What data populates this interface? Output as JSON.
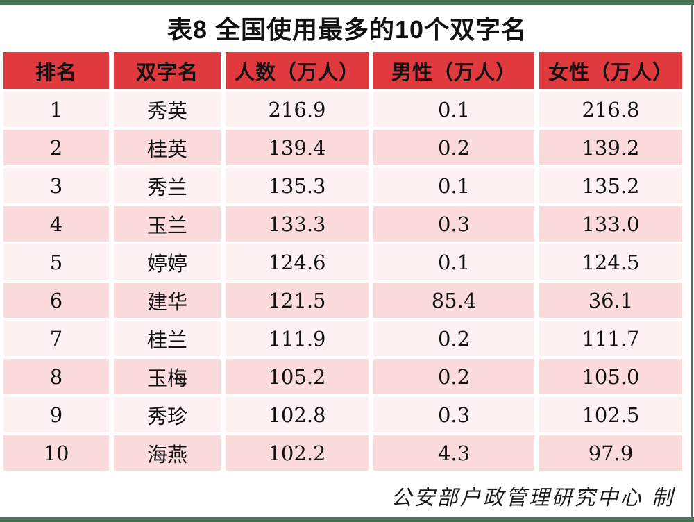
{
  "title": "表8  全国使用最多的10个双字名",
  "footer_note": "公安部户政管理研究中心 制",
  "colors": {
    "header_bg": "#E03A3E",
    "row_light_bg": "#FDF1F1",
    "row_dark_bg": "#FBDBDC",
    "frame_green": "#4A7355",
    "text": "#111111"
  },
  "table": {
    "headers": [
      "排名",
      "双字名",
      "人数（万人）",
      "男性（万人）",
      "女性（万人）"
    ],
    "rows": [
      {
        "rank": "1",
        "name": "秀英",
        "total": "216.9",
        "male": "0.1",
        "female": "216.8"
      },
      {
        "rank": "2",
        "name": "桂英",
        "total": "139.4",
        "male": "0.2",
        "female": "139.2"
      },
      {
        "rank": "3",
        "name": "秀兰",
        "total": "135.3",
        "male": "0.1",
        "female": "135.2"
      },
      {
        "rank": "4",
        "name": "玉兰",
        "total": "133.3",
        "male": "0.3",
        "female": "133.0"
      },
      {
        "rank": "5",
        "name": "婷婷",
        "total": "124.6",
        "male": "0.1",
        "female": "124.5"
      },
      {
        "rank": "6",
        "name": "建华",
        "total": "121.5",
        "male": "85.4",
        "female": "36.1"
      },
      {
        "rank": "7",
        "name": "桂兰",
        "total": "111.9",
        "male": "0.2",
        "female": "111.7"
      },
      {
        "rank": "8",
        "name": "玉梅",
        "total": "105.2",
        "male": "0.2",
        "female": "105.0"
      },
      {
        "rank": "9",
        "name": "秀珍",
        "total": "102.8",
        "male": "0.3",
        "female": "102.5"
      },
      {
        "rank": "10",
        "name": "海燕",
        "total": "102.2",
        "male": "4.3",
        "female": "97.9"
      }
    ]
  },
  "chart_data": {
    "type": "table",
    "title": "表8 全国使用最多的10个双字名",
    "columns": [
      "排名",
      "双字名",
      "人数（万人）",
      "男性（万人）",
      "女性（万人）"
    ],
    "rows": [
      [
        1,
        "秀英",
        216.9,
        0.1,
        216.8
      ],
      [
        2,
        "桂英",
        139.4,
        0.2,
        139.2
      ],
      [
        3,
        "秀兰",
        135.3,
        0.1,
        135.2
      ],
      [
        4,
        "玉兰",
        133.3,
        0.3,
        133.0
      ],
      [
        5,
        "婷婷",
        124.6,
        0.1,
        124.5
      ],
      [
        6,
        "建华",
        121.5,
        85.4,
        36.1
      ],
      [
        7,
        "桂兰",
        111.9,
        0.2,
        111.7
      ],
      [
        8,
        "玉梅",
        105.2,
        0.2,
        105.0
      ],
      [
        9,
        "秀珍",
        102.8,
        0.3,
        102.5
      ],
      [
        10,
        "海燕",
        102.2,
        4.3,
        97.9
      ]
    ],
    "source_note": "公安部户政管理研究中心 制",
    "layout": {
      "header_style": "red-banner",
      "row_striping": "pink-alternating",
      "grid": "white-gutters"
    }
  }
}
